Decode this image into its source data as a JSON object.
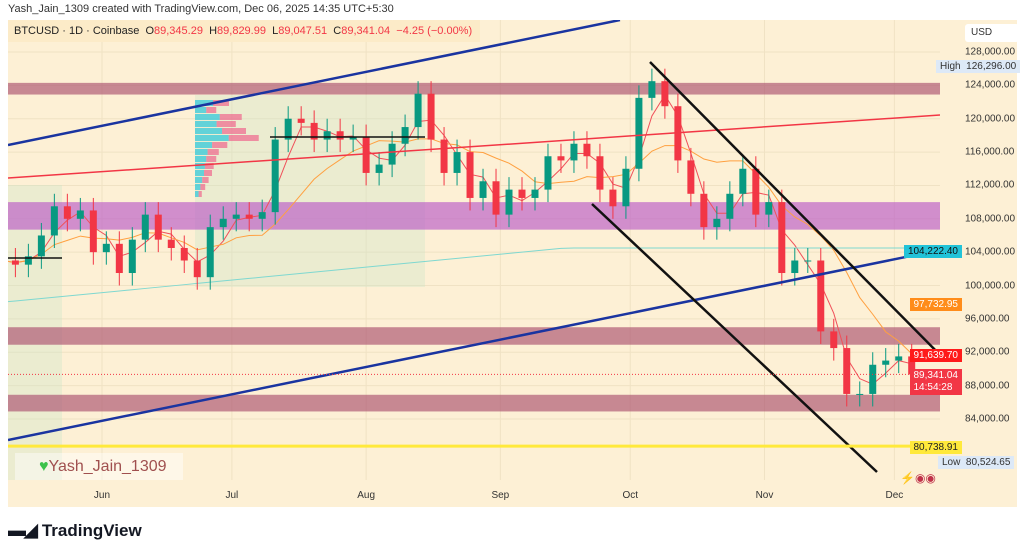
{
  "header": {
    "credit": "Yash_Jain_1309 created with TradingView.com, Dec 06, 2025 14:35 UTC+5:30"
  },
  "legend": {
    "symbol": "BTCUSD · 1D · Coinbase",
    "o_label": "O",
    "o": "89,345.29",
    "h_label": "H",
    "h": "89,829.99",
    "l_label": "L",
    "l": "89,047.51",
    "c_label": "C",
    "c": "89,341.04",
    "change": "−4.25 (−0.00%)"
  },
  "currency": "USD",
  "watermark": "Yash_Jain_1309",
  "brand": "TradingView",
  "price_labels": {
    "high_label": "High",
    "high": "126,296.00",
    "blue_line": "104,222.40",
    "orange_ma": "97,732.95",
    "red_ma": "91,639.70",
    "last": "89,341.04",
    "countdown": "14:54:28",
    "yellow_line": "80,738.91",
    "low_label": "Low",
    "low": "80,524.65"
  },
  "colors": {
    "up": "#089981",
    "down": "#f23645",
    "background": "#fdf0d5",
    "zone_maroon": "#b5677e",
    "zone_purple": "#c77dc7",
    "trend_blue": "#1a34a0",
    "resistance_red": "#f23645",
    "yellow": "#ffe93b"
  },
  "chart_data": {
    "type": "candlestick",
    "symbol": "BTCUSD",
    "interval": "1D",
    "exchange": "Coinbase",
    "ylim": [
      78000,
      131000
    ],
    "y_ticks": [
      "128,000.00",
      "124,000.00",
      "120,000.00",
      "116,000.00",
      "112,000.00",
      "108,000.00",
      "104,000.00",
      "100,000.00",
      "96,000.00",
      "92,000.00",
      "88,000.00",
      "84,000.00"
    ],
    "y_tick_values": [
      128000,
      124000,
      120000,
      116000,
      112000,
      108000,
      104000,
      100000,
      96000,
      92000,
      88000,
      84000
    ],
    "x_ticks": [
      "Jun",
      "Jul",
      "Aug",
      "Sep",
      "Oct",
      "Nov",
      "Dec"
    ],
    "x_tick_days": [
      23,
      53,
      84,
      115,
      145,
      176,
      206
    ],
    "start_date": "May 9",
    "step_days": 3,
    "closes": [
      103000,
      102500,
      103500,
      106000,
      109500,
      108000,
      109000,
      104000,
      105000,
      101500,
      105500,
      108500,
      105500,
      104500,
      103000,
      101000,
      107000,
      108000,
      108500,
      108000,
      108800,
      117500,
      120000,
      119500,
      117500,
      118500,
      117500,
      117800,
      113500,
      114500,
      117000,
      119000,
      123000,
      117500,
      113500,
      116000,
      110500,
      112500,
      108500,
      111500,
      110500,
      111500,
      115500,
      115000,
      117000,
      115500,
      111500,
      109500,
      114000,
      122500,
      124500,
      121500,
      115000,
      111000,
      107000,
      108000,
      111000,
      114000,
      108500,
      110000,
      101500,
      103000,
      103000,
      94500,
      92500,
      87000,
      87000,
      90500,
      91000,
      91500,
      89341
    ],
    "zones": [
      {
        "from": 122900,
        "to": 124300,
        "color": "maroon"
      },
      {
        "from": 106700,
        "to": 110000,
        "color": "purple"
      },
      {
        "from": 92900,
        "to": 95000,
        "color": "maroon"
      },
      {
        "from": 84900,
        "to": 86900,
        "color": "maroon"
      }
    ],
    "horizontal_line": 80738.91
  }
}
